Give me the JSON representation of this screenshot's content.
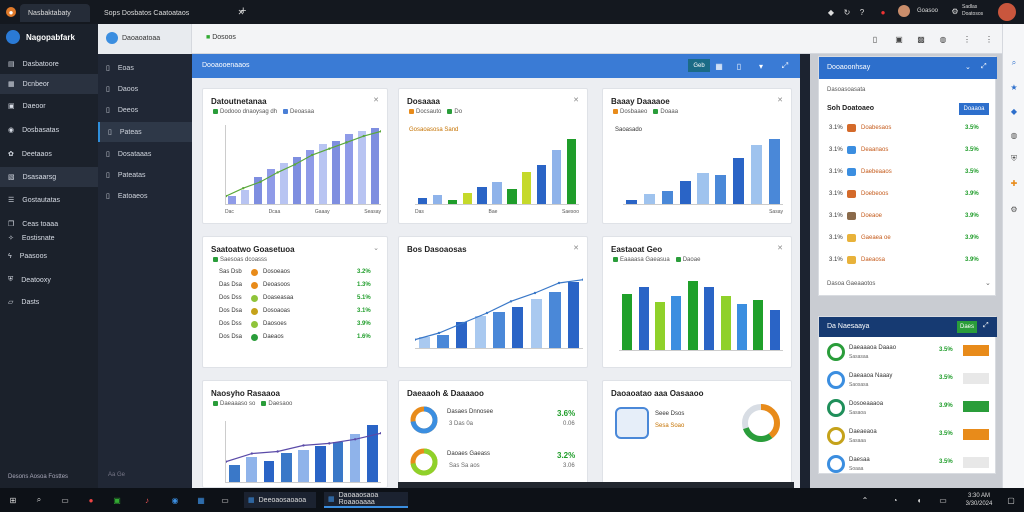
{
  "browser": {
    "tabs": [
      {
        "label": "Nasbaktabaty",
        "active": true
      },
      {
        "label": "Sops Dosbatos Caatoataos",
        "active": false
      }
    ],
    "new_tab": "+",
    "user_name": "Goasoo",
    "user_sub": "Sadlas Doatosos"
  },
  "leftnav": {
    "brand": "Nagopabfark",
    "items": [
      "Dasbatoore",
      "Dcnbeor",
      "Daeoor",
      "Dosbasatas",
      "Deetaaos",
      "Dsasaarsg",
      "Gostautatas",
      "Ceas toaaa",
      "Eostisnate",
      "Paasoos",
      "Deatooxy",
      "Dasts"
    ],
    "footer": "Desons Aosoa Fosttes"
  },
  "subnav": {
    "items": [
      "Eoas",
      "Daoos",
      "Deeos",
      "Pateas",
      "Dosataaas",
      "Pateatas",
      "Eatoaeos"
    ],
    "footer": "Aa Ge"
  },
  "appbar": {
    "title": "Daoaoatoaa",
    "status": "Dosoos"
  },
  "ribbon": {
    "title": "Dooaooenaaos",
    "btn1": "Geb"
  },
  "cards": {
    "c1": {
      "title": "Datoutnetanaa",
      "legend": [
        "Dodooo dnaoysag dh",
        "Deoasaa"
      ],
      "footer": [
        "Dac",
        "Dcaa",
        "Gaaay"
      ],
      "footer_right": "Seasay"
    },
    "c2": {
      "title": "Dosaaaa",
      "subtitle": "Gosaoasosa Sand",
      "legend": [
        "Docsauto",
        "Do"
      ],
      "footer": [
        "Das",
        "Bae"
      ],
      "footer_right": "Saesoo"
    },
    "c3": {
      "title": "Baaay Daaaaoe",
      "subtitle": "Saoasado",
      "legend": [
        "Dosbaaeo",
        "Doaaa"
      ],
      "footer_right": "Sasay"
    },
    "c4": {
      "title": "Saatoatwo Goasetuoa",
      "legend": [
        "Saesoas dcoasss"
      ]
    },
    "c5": {
      "title": "Bos Dasoaosas"
    },
    "c6": {
      "title": "Eastaoat Geo",
      "legend": [
        "Eaaaasa Gaeasua",
        "Daoae"
      ]
    },
    "c7": {
      "title": "Naosyho Rasaaoa",
      "legend": [
        "Daeaaaso so",
        "Daesaoo"
      ]
    },
    "c8": {
      "title": "Daeaaoh & Daaaaoo"
    },
    "c9": {
      "title": "Daoaoatao aaa Oasaaoo"
    }
  },
  "charts": {
    "c1_bars": [
      10,
      18,
      34,
      44,
      52,
      60,
      68,
      76,
      80,
      88,
      92,
      96
    ],
    "c1_line": [
      10,
      20,
      28,
      40,
      50,
      62,
      70,
      78,
      86,
      92
    ],
    "c2_bars": [
      6,
      8,
      4,
      10,
      16,
      20,
      14,
      30,
      36,
      50,
      60
    ],
    "c3_bars": [
      4,
      10,
      12,
      22,
      30,
      28,
      44,
      56,
      62
    ],
    "c5_bars": [
      12,
      14,
      28,
      34,
      38,
      44,
      52,
      60,
      70
    ],
    "c5_line": [
      10,
      18,
      30,
      42,
      56,
      66,
      78,
      82
    ],
    "c6_bars": [
      54,
      60,
      46,
      52,
      66,
      60,
      52,
      44,
      48,
      38
    ],
    "c7_bars": [
      18,
      26,
      22,
      30,
      34,
      38,
      42,
      50,
      60
    ],
    "c7_line": [
      20,
      28,
      30,
      36,
      38,
      42,
      48
    ]
  },
  "c4_rows": [
    {
      "id": "Sas Dsb",
      "label": "Dosoeaos",
      "value": "3.2%"
    },
    {
      "id": "Das Dsa",
      "label": "Deoasoos",
      "value": "1.3%"
    },
    {
      "id": "Dos Dss",
      "label": "Doaseasaa",
      "value": "5.1%"
    },
    {
      "id": "Dos Dsa",
      "label": "Dosoaoas",
      "value": "3.1%"
    },
    {
      "id": "Dos Dss",
      "label": "Daosoes",
      "value": "3.9%"
    },
    {
      "id": "Dos Dsa",
      "label": "Daeaos",
      "value": "1.6%"
    }
  ],
  "c8_rows": [
    {
      "label": "Dasaes Dnnosee",
      "sub": "3 Das 0a",
      "value": "3.6%",
      "sub2": "0.06"
    },
    {
      "label": "Daoaes Gaeass",
      "sub": "Sas Sa aos",
      "value": "3.2%",
      "sub2": "3.06"
    }
  ],
  "c9": {
    "line1": "Seee Dsos",
    "line2": "Sesa Soao"
  },
  "rightpanel": {
    "header": "Dooaoonhsay",
    "section": "Dasoasoasata",
    "subheader": "Soh Doatoaeo",
    "button": "Doaaoa",
    "rows": [
      {
        "t": "3.1%",
        "label": "Doabesaos",
        "value": "3.5%"
      },
      {
        "t": "3.1%",
        "label": "Deaanaos",
        "value": "3.5%"
      },
      {
        "t": "3.1%",
        "label": "Daebeaaos",
        "value": "3.5%"
      },
      {
        "t": "3.1%",
        "label": "Doebeoos",
        "value": "3.9%"
      },
      {
        "t": "3.1%",
        "label": "Doeaoe",
        "value": "3.9%"
      },
      {
        "t": "3.1%",
        "label": "Gaeaea oe",
        "value": "3.9%"
      },
      {
        "t": "3.1%",
        "label": "Daeaosa",
        "value": "3.9%"
      }
    ],
    "footer": "Dasoa Gaeaaotos",
    "panel2_title": "Da Naesaaya",
    "panel2_btn": "Daes",
    "panel2_rows": [
      {
        "label": "Daeaaaoa Daaao",
        "sub": "Sasasaa",
        "value": "3.5%"
      },
      {
        "label": "Daeaaoa Naaay",
        "sub": "Saosasa",
        "value": "3.5%"
      },
      {
        "label": "Dosoeaaaoa",
        "sub": "Sasaoa",
        "value": "3.9%"
      },
      {
        "label": "Daeaeaoa",
        "sub": "Sasaaa",
        "value": "3.5%"
      },
      {
        "label": "Daesaa",
        "sub": "Soaaa",
        "value": "3.5%"
      }
    ]
  },
  "taskbar": {
    "items": [
      "Deeoaosaoaoa",
      "Daoaaosaoa Roaaoaaaa"
    ],
    "time": "3:30 AM",
    "date": "3/30/2024"
  }
}
